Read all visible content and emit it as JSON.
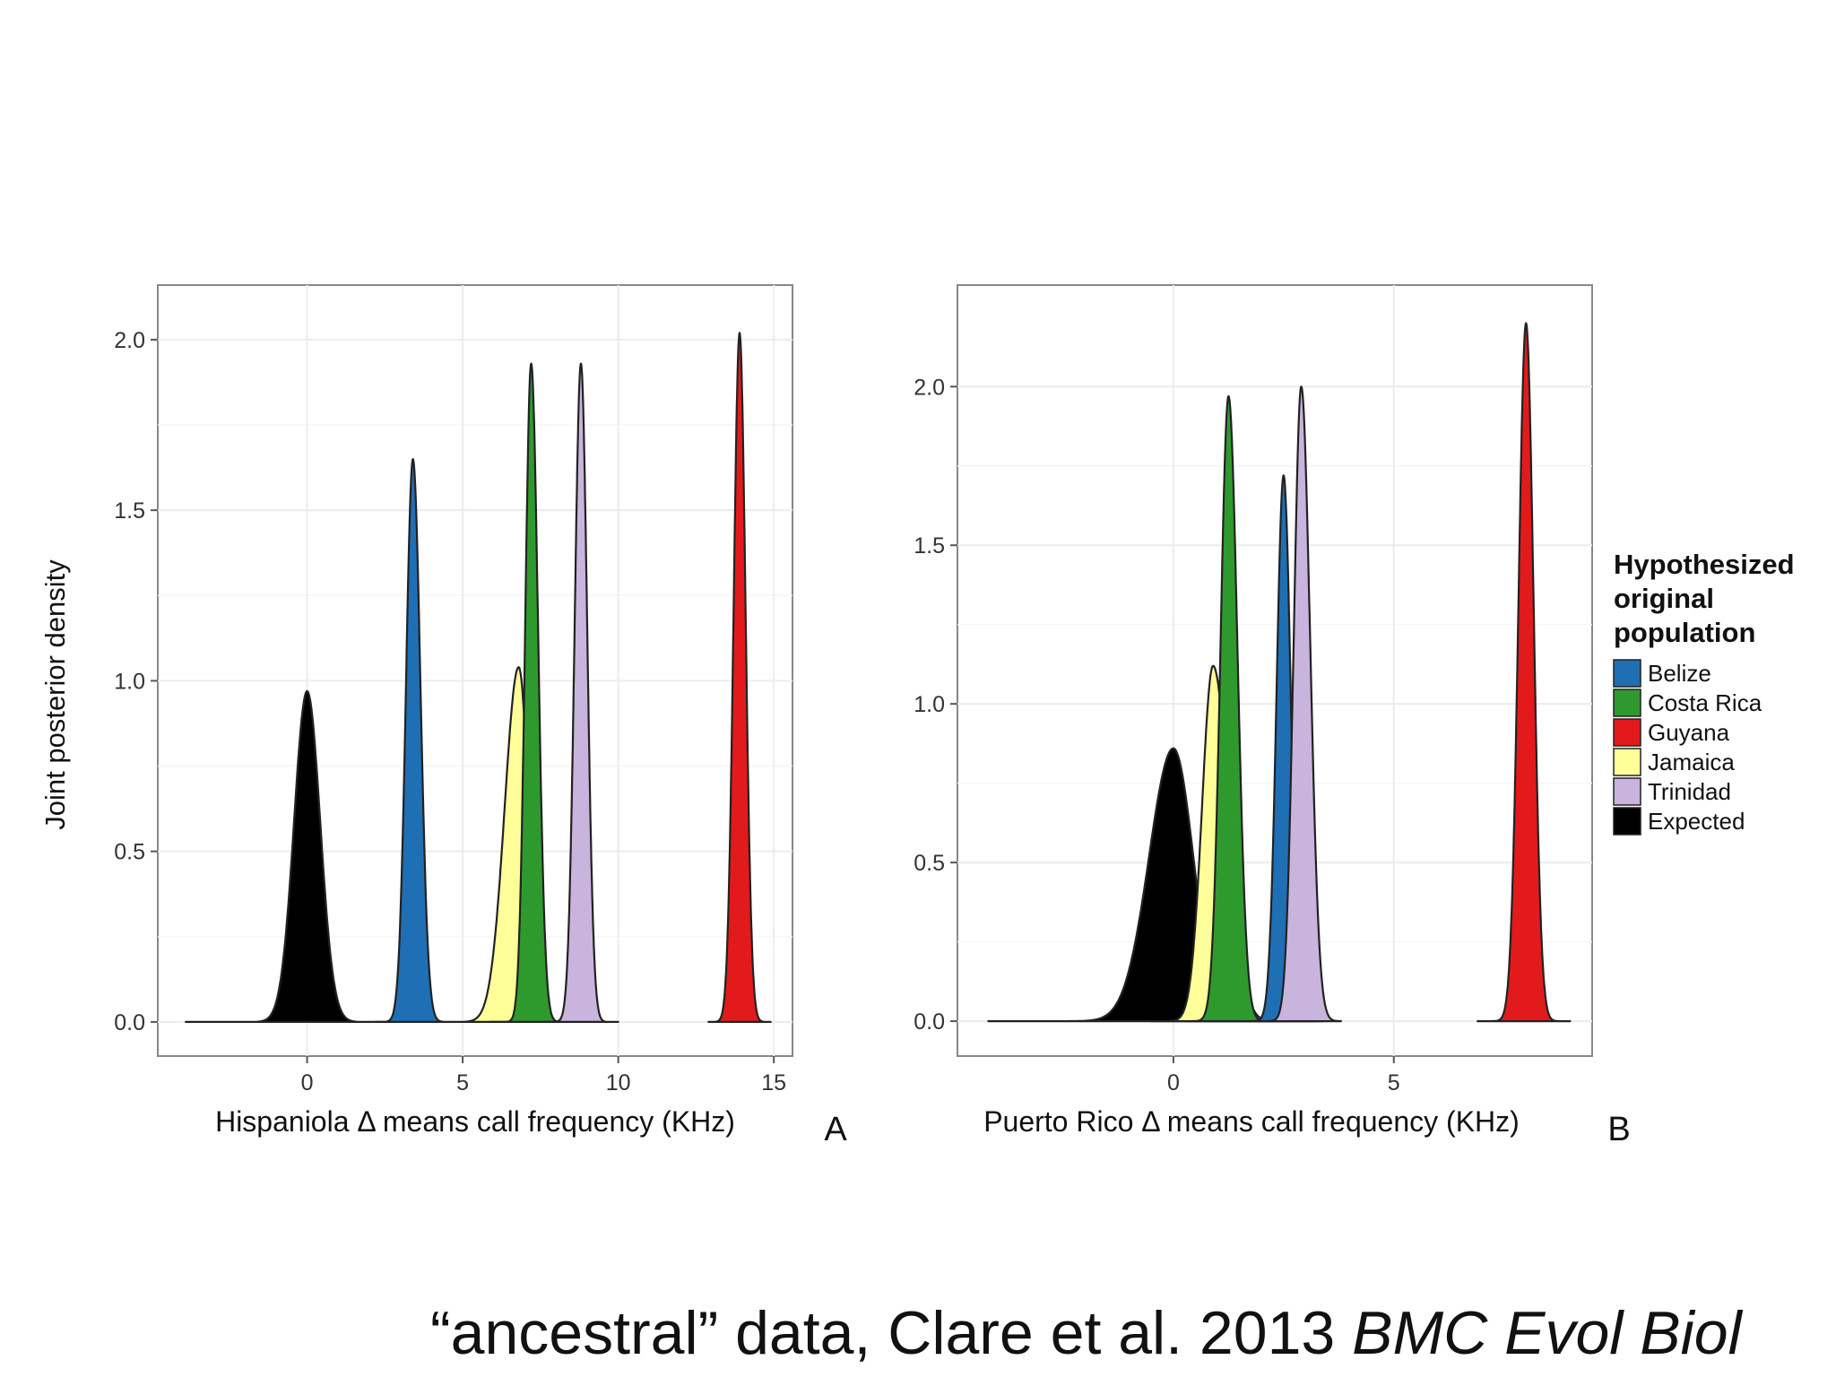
{
  "colors": {
    "Belize": "#1f6fb4",
    "Costa Rica": "#2e9a2e",
    "Guyana": "#e31a1c",
    "Jamaica": "#ffff99",
    "Trinidad": "#c8b4dc",
    "Expected": "#000000"
  },
  "legend": {
    "title_lines": [
      "Hypothesized",
      "original",
      "population"
    ],
    "entries": [
      "Belize",
      "Costa Rica",
      "Guyana",
      "Jamaica",
      "Trinidad",
      "Expected"
    ]
  },
  "caption": {
    "prefix": "“ancestral” data, Clare et al. 2013 ",
    "journal": "BMC Evol Biol"
  },
  "chart_data": [
    {
      "type": "area",
      "panel_label": "A",
      "xlabel": "Hispaniola Δ means call frequency (KHz)",
      "ylabel": "Joint posterior density",
      "xlim": [
        -4.8,
        15.6
      ],
      "ylim": [
        -0.1,
        2.16
      ],
      "xticks": [
        0,
        5,
        10,
        15
      ],
      "yticks": [
        0.0,
        0.5,
        1.0,
        1.5,
        2.0
      ],
      "grid": true,
      "series": [
        {
          "name": "Expected",
          "mean": 0.0,
          "peak": 0.97,
          "sd_left": 0.42,
          "sd_right": 0.42,
          "range": [
            -3.9,
            3.9
          ]
        },
        {
          "name": "Jamaica",
          "mean": 6.8,
          "peak": 1.04,
          "sd_left": 0.45,
          "sd_right": 0.32,
          "range": [
            4.7,
            8.4
          ]
        },
        {
          "name": "Belize",
          "mean": 3.4,
          "peak": 1.65,
          "sd_left": 0.22,
          "sd_right": 0.24,
          "range": [
            2.2,
            4.7
          ]
        },
        {
          "name": "Costa Rica",
          "mean": 7.2,
          "peak": 1.93,
          "sd_left": 0.19,
          "sd_right": 0.22,
          "range": [
            5.9,
            8.5
          ]
        },
        {
          "name": "Trinidad",
          "mean": 8.8,
          "peak": 1.93,
          "sd_left": 0.2,
          "sd_right": 0.2,
          "range": [
            7.7,
            10.0
          ]
        },
        {
          "name": "Guyana",
          "mean": 13.9,
          "peak": 2.02,
          "sd_left": 0.19,
          "sd_right": 0.19,
          "range": [
            12.9,
            14.9
          ]
        }
      ]
    },
    {
      "type": "area",
      "panel_label": "B",
      "xlabel": "Puerto Rico Δ means call frequency (KHz)",
      "ylabel": "",
      "xlim": [
        -4.9,
        9.5
      ],
      "ylim": [
        -0.11,
        2.32
      ],
      "xticks": [
        0,
        5
      ],
      "yticks": [
        0.0,
        0.5,
        1.0,
        1.5,
        2.0
      ],
      "grid": true,
      "series": [
        {
          "name": "Expected",
          "mean": 0.0,
          "peak": 0.86,
          "sd_left": 0.55,
          "sd_right": 0.45,
          "range": [
            -4.2,
            3.2
          ]
        },
        {
          "name": "Jamaica",
          "mean": 0.9,
          "peak": 1.12,
          "sd_left": 0.25,
          "sd_right": 0.35,
          "range": [
            -0.5,
            2.5
          ]
        },
        {
          "name": "Costa Rica",
          "mean": 1.25,
          "peak": 1.97,
          "sd_left": 0.18,
          "sd_right": 0.2,
          "range": [
            0.3,
            2.3
          ]
        },
        {
          "name": "Belize",
          "mean": 2.5,
          "peak": 1.72,
          "sd_left": 0.16,
          "sd_right": 0.16,
          "range": [
            1.6,
            3.4
          ]
        },
        {
          "name": "Trinidad",
          "mean": 2.9,
          "peak": 2.0,
          "sd_left": 0.17,
          "sd_right": 0.2,
          "range": [
            2.0,
            3.8
          ]
        },
        {
          "name": "Guyana",
          "mean": 8.0,
          "peak": 2.2,
          "sd_left": 0.17,
          "sd_right": 0.17,
          "range": [
            6.9,
            9.0
          ]
        }
      ]
    }
  ]
}
